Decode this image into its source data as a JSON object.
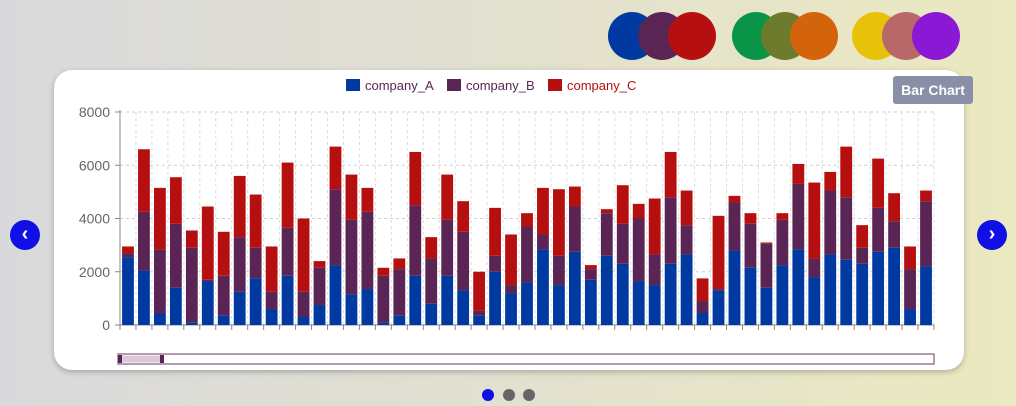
{
  "palettes": [
    {
      "name": "palette-1",
      "colors": [
        "#003aa0",
        "#5a2554",
        "#b60f0f"
      ]
    },
    {
      "name": "palette-2",
      "colors": [
        "#0a9448",
        "#6e7a2c",
        "#d4640c"
      ]
    },
    {
      "name": "palette-3",
      "colors": [
        "#e8c20a",
        "#b86868",
        "#8a18d4"
      ]
    }
  ],
  "tooltip": {
    "label": "Bar Chart"
  },
  "nav": {
    "prev_icon": "chevron-left-icon",
    "next_icon": "chevron-right-icon"
  },
  "pagination": {
    "count": 3,
    "active": 0
  },
  "chart_data": {
    "type": "bar",
    "stacked": true,
    "title": "",
    "xlabel": "",
    "ylabel": "",
    "ylim": [
      0,
      8000
    ],
    "yticks": [
      0,
      2000,
      4000,
      6000,
      8000
    ],
    "grid": true,
    "legend_position": "top-center",
    "series": [
      {
        "name": "company_A",
        "color": "#003aa0",
        "values": [
          2550,
          2050,
          450,
          1400,
          100,
          1650,
          350,
          1250,
          1750,
          600,
          1850,
          300,
          750,
          2250,
          1150,
          1350,
          100,
          350,
          1850,
          800,
          1850,
          1300,
          350,
          2000,
          1200,
          1600,
          2850,
          1500,
          2750,
          1700,
          2600,
          2300,
          1650,
          1500,
          2300,
          2650,
          450,
          1300,
          2800,
          2150,
          1400,
          2250,
          2850,
          1800,
          2650,
          2450,
          2300,
          2750,
          2900,
          600,
          2200
        ]
      },
      {
        "name": "company_B",
        "color": "#5a2554",
        "values": [
          150,
          2200,
          2400,
          2400,
          2800,
          50,
          1500,
          2050,
          1150,
          650,
          1800,
          950,
          1400,
          2850,
          2800,
          2900,
          1750,
          1750,
          2650,
          1700,
          2100,
          2200,
          200,
          600,
          300,
          2100,
          550,
          1100,
          1700,
          400,
          1600,
          1500,
          2350,
          1150,
          2500,
          1100,
          450,
          50,
          1800,
          1650,
          1650,
          1700,
          2450,
          700,
          2400,
          2350,
          600,
          1650,
          1000,
          1500,
          2450
        ]
      },
      {
        "name": "company_C",
        "color": "#b60f0f",
        "values": [
          250,
          2350,
          2300,
          1750,
          650,
          2750,
          1650,
          2300,
          2000,
          1700,
          2450,
          2750,
          250,
          1600,
          1700,
          900,
          300,
          400,
          2000,
          800,
          1700,
          1150,
          1450,
          1800,
          1900,
          500,
          1750,
          2500,
          750,
          150,
          150,
          1450,
          550,
          2100,
          1700,
          1300,
          850,
          2750,
          250,
          400,
          50,
          250,
          750,
          2850,
          700,
          1900,
          850,
          1850,
          1050,
          850,
          400
        ]
      }
    ]
  }
}
